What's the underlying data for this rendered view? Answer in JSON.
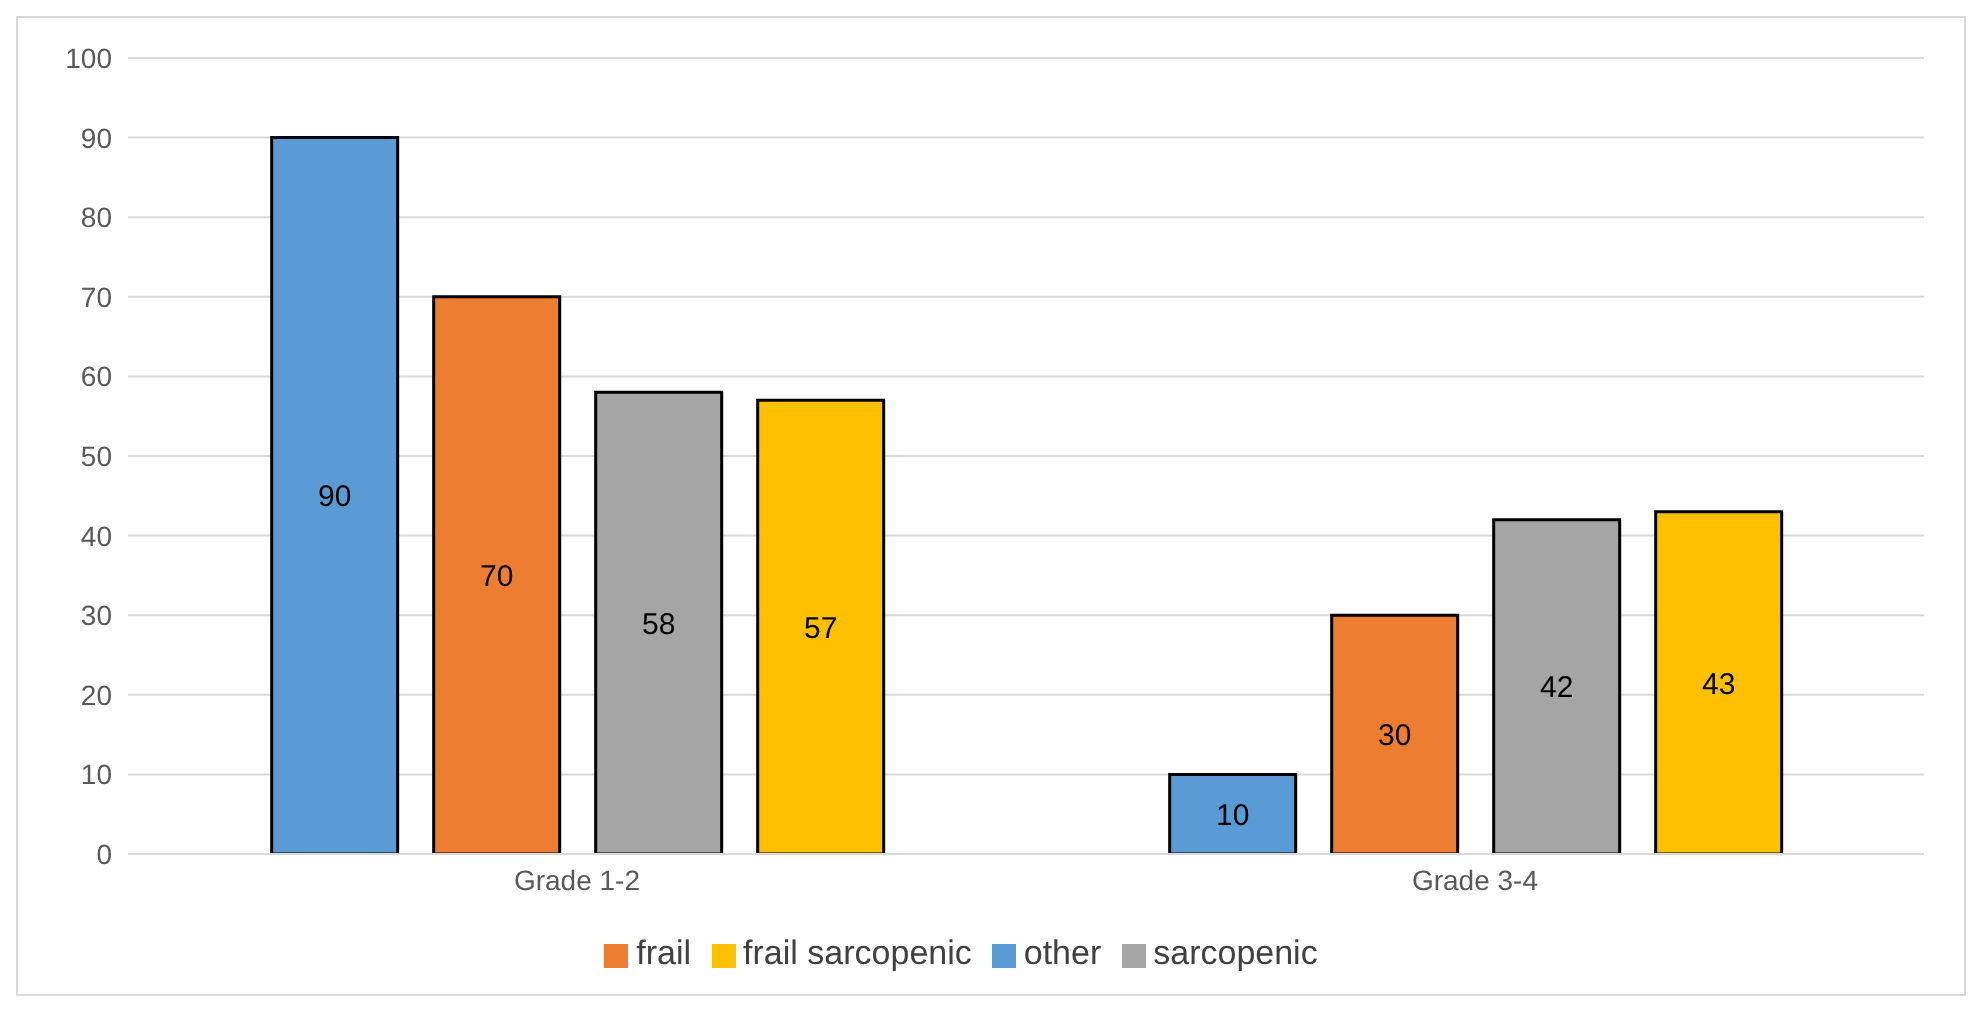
{
  "chart_data": {
    "type": "bar",
    "categories": [
      "Grade 1-2",
      "Grade 3-4"
    ],
    "series": [
      {
        "name": "other",
        "color": "#5b9bd5",
        "values": [
          90,
          10
        ]
      },
      {
        "name": "frail",
        "color": "#ed7d31",
        "values": [
          70,
          30
        ]
      },
      {
        "name": "sarcopenic",
        "color": "#a5a5a5",
        "values": [
          58,
          42
        ]
      },
      {
        "name": "frail sarcopenic",
        "color": "#ffc000",
        "values": [
          57,
          43
        ]
      }
    ],
    "ylim": [
      0,
      100
    ],
    "yticks": [
      0,
      10,
      20,
      30,
      40,
      50,
      60,
      70,
      80,
      90,
      100
    ],
    "grid": "y",
    "legend": "bottom",
    "data_labels": true
  }
}
